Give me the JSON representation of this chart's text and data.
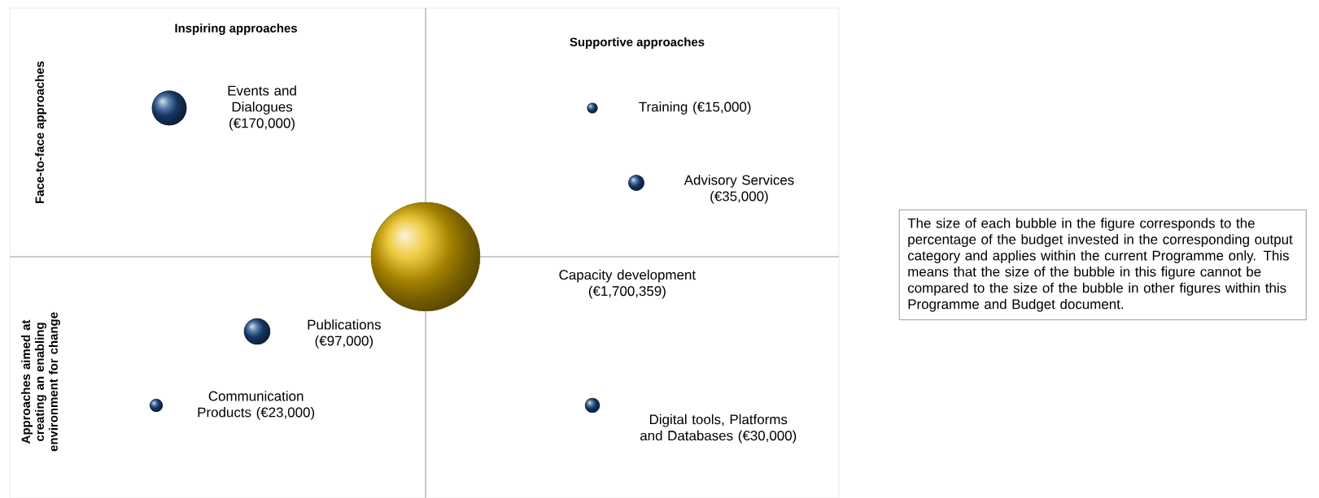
{
  "chart_data": {
    "type": "other",
    "categories": [
      "Events and Dialogues",
      "Training",
      "Advisory Services",
      "Capacity development",
      "Publications",
      "Communication Products",
      "Digital tools, Platforms and Databases"
    ],
    "values": [
      170000,
      15000,
      35000,
      1700359,
      97000,
      23000,
      30000
    ],
    "value_labels": [
      "(€170,000)",
      "(€15,000)",
      "(€35,000)",
      "(€1,700,359)",
      "(€97,000)",
      "(€23,000)",
      "(€30,000)"
    ],
    "colors": [
      "#1f4e8c",
      "#1f4e8c",
      "#1f4e8c",
      "#e8b800",
      "#1f4e8c",
      "#1f4e8c",
      "#1f4e8c"
    ],
    "annotations": [
      "Inspiring approaches",
      "Supportive approaches",
      "Face-to-face approaches",
      "Approaches aimed at creating an enabling environment for change",
      "The size of each bubble in the figure corresponds to the percentage of the budget invested in the corresponding output category and applies within the current Programme only. This means that the size of the bubble in this figure cannot be compared to the size of the bubble in other figures within this Programme and Budget document."
    ]
  }
}
